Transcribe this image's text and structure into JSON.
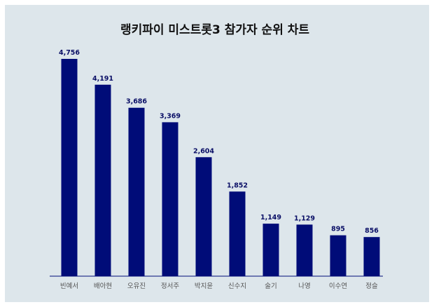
{
  "chart_data": {
    "type": "bar",
    "title": "랭키파이 미스트롯3 참가자 순위 차트",
    "xlabel": "",
    "ylabel": "",
    "categories": [
      "빈예서",
      "배아현",
      "오유진",
      "정서주",
      "박지윤",
      "신수지",
      "술기",
      "나영",
      "이수연",
      "정슬"
    ],
    "values": [
      4756,
      4191,
      3686,
      3369,
      2604,
      1852,
      1149,
      1129,
      895,
      856
    ],
    "value_labels": [
      "4,756",
      "4,191",
      "3,686",
      "3,369",
      "2,604",
      "1,852",
      "1,149",
      "1,129",
      "895",
      "856"
    ],
    "ylim": [
      0,
      4756
    ],
    "grid": false,
    "legend": "none",
    "colors": {
      "bar": "#000c78",
      "background": "#dde6eb",
      "value_text": "#0a0f66",
      "category_text": "#555555",
      "title_text": "#111111"
    }
  }
}
